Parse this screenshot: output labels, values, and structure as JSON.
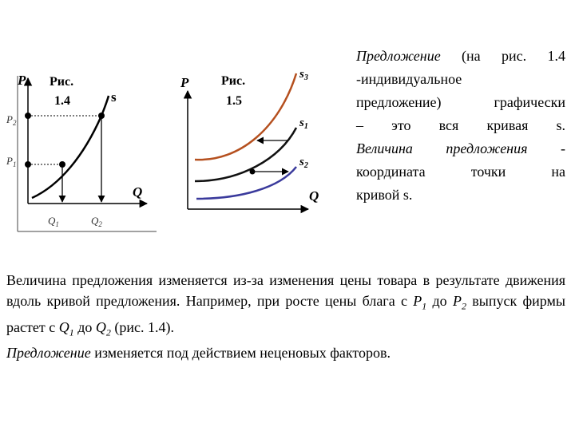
{
  "fig14": {
    "p_axis": "P",
    "q_axis": "Q",
    "caption_line1": "Рис.",
    "caption_line2": "1.4",
    "curve_label": "s",
    "p2": "P",
    "p2_sub": "2",
    "p1": "P",
    "p1_sub": "1",
    "q1": "Q",
    "q1_sub": "1",
    "q2": "Q",
    "q2_sub": "2",
    "curve_color": "#000000"
  },
  "fig15": {
    "p_axis": "P",
    "q_axis": "Q",
    "caption_line1": "Рис.",
    "caption_line2": "1.5",
    "s3": "s",
    "s3_sub": "3",
    "s1": "s",
    "s1_sub": "1",
    "s2": "s",
    "s2_sub": "2",
    "s3_color": "#b5501f",
    "s1_color": "#111111",
    "s2_color": "#3a3a9c"
  },
  "right_text": {
    "l1_italic": "Предложение",
    "l1_rest": " (на рис. 1.4",
    "l2": "-индивидуальное",
    "l3": "предложение) графически",
    "l4": "– это вся кривая s.",
    "l5_italic": "Величина предложения",
    "l5_rest": " -",
    "l6": "координата точки на",
    "l7": "кривой s."
  },
  "bottom_text": {
    "part1": "Величина предложения изменяется из-за изменения цены товара в результате движения вдоль кривой предложения. Например, при росте цены блага с ",
    "p1": "P",
    "p1_sub": "1",
    "to1": " до ",
    "p2": "P",
    "p2_sub": "2",
    "part2": " выпуск фирмы растет с ",
    "q1": "Q",
    "q1_sub": "1",
    "to2": " до ",
    "q2": "Q",
    "q2_sub": "2",
    "part3": " (рис. 1.4).",
    "italic_word": "Предложение",
    "part4": " изменяется под действием неценовых факторов."
  }
}
